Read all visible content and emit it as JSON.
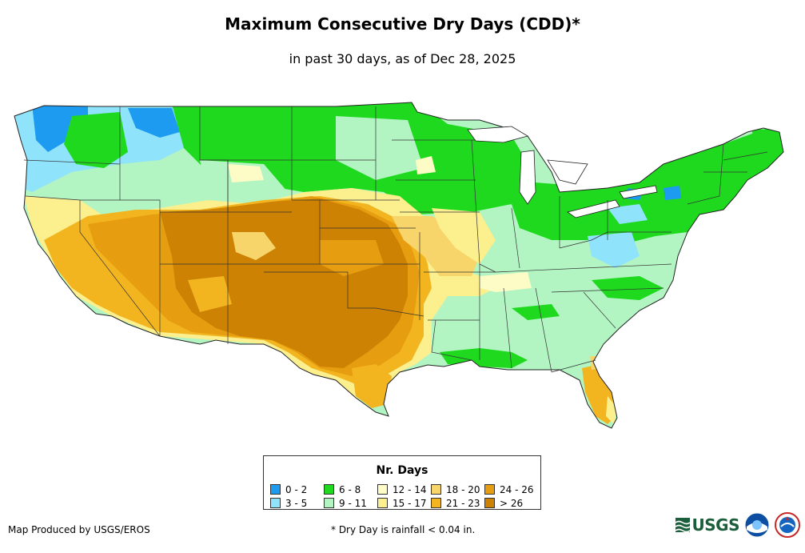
{
  "title": "Maximum Consecutive Dry Days (CDD)*",
  "subtitle": "in past 30 days, as of Dec 28, 2025",
  "legend": {
    "title": "Nr. Days",
    "classes": [
      {
        "label": "0 - 2",
        "color": "#1d9bf0"
      },
      {
        "label": "3 - 5",
        "color": "#8fe3fb"
      },
      {
        "label": "6 - 8",
        "color": "#1ed91e"
      },
      {
        "label": "9 - 11",
        "color": "#b2f5c2"
      },
      {
        "label": "12 - 14",
        "color": "#fdfcc6"
      },
      {
        "label": "15 - 17",
        "color": "#fbef8e"
      },
      {
        "label": "18 - 20",
        "color": "#f8d56a"
      },
      {
        "label": "21 - 23",
        "color": "#f2b520"
      },
      {
        "label": "24 - 26",
        "color": "#e79d10"
      },
      {
        "label": "> 26",
        "color": "#cd8203"
      }
    ]
  },
  "credit": "Map Produced by USGS/EROS",
  "footnote": "* Dry Day is rainfall < 0.04 in.",
  "logos": {
    "usgs": "USGS",
    "noaa": "noaa-logo",
    "nws": "nws-logo"
  }
}
